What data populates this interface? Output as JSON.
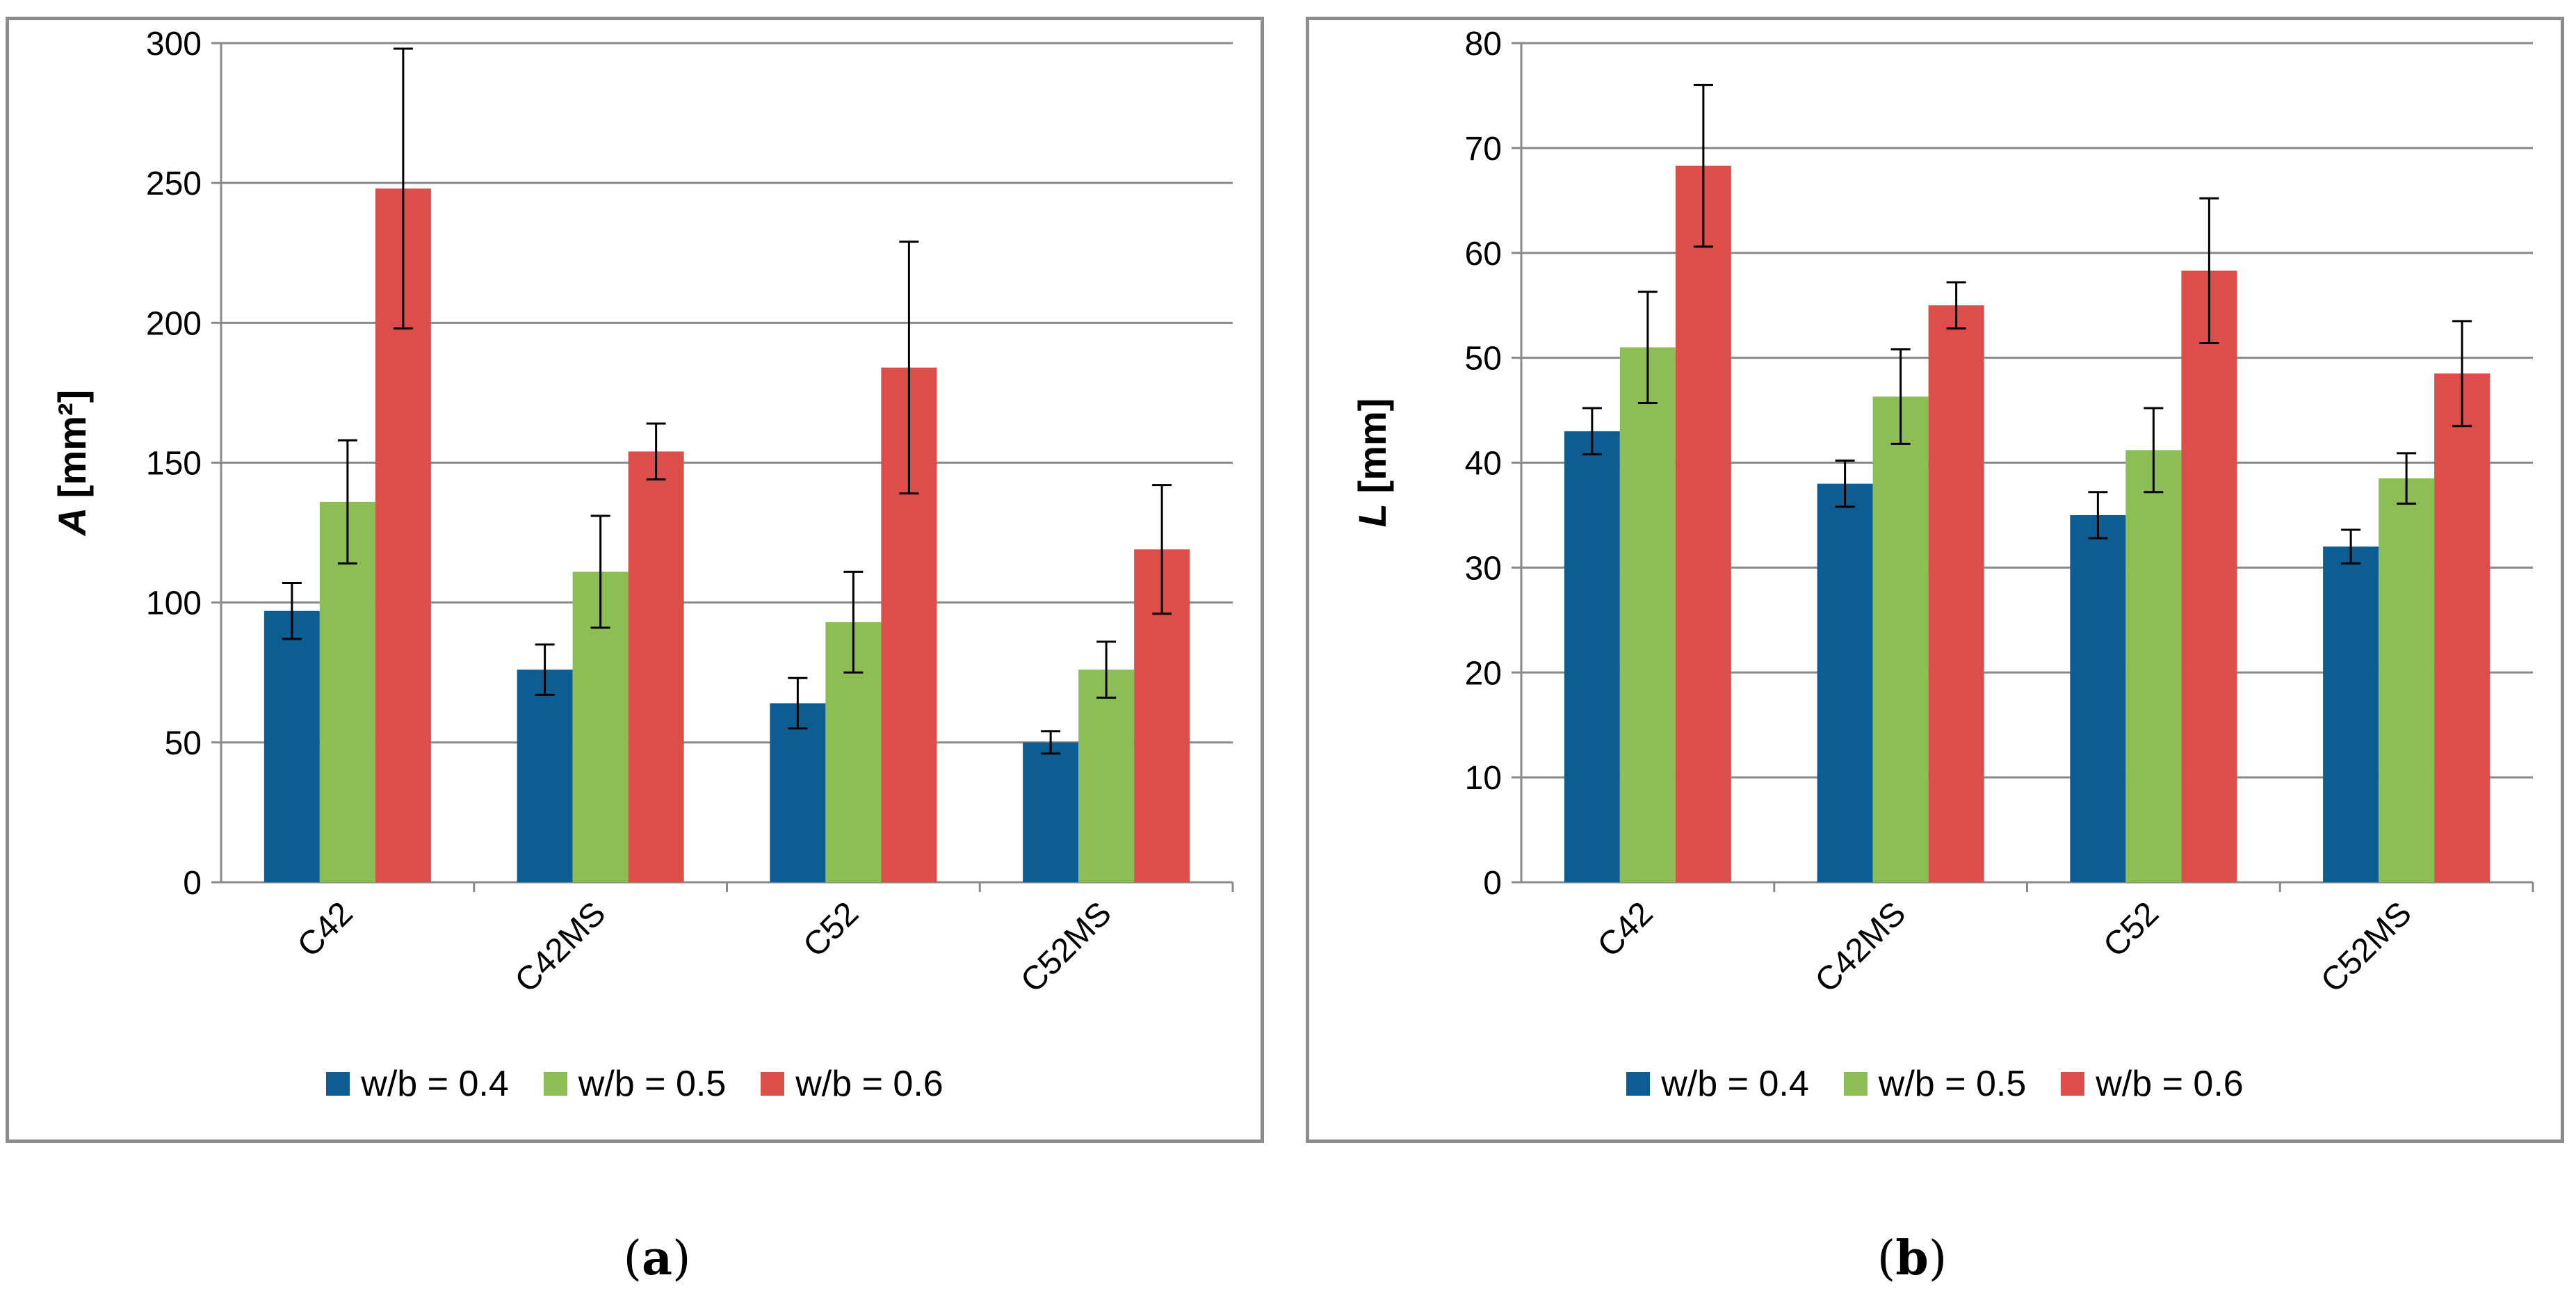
{
  "chart_data": [
    {
      "type": "bar",
      "panel_label": "a",
      "ylabel_var": "A",
      "ylabel_unit": "[mm²]",
      "categories": [
        "C42",
        "C42MS",
        "C52",
        "C52MS"
      ],
      "ylim": [
        0,
        300
      ],
      "yticks": [
        0,
        50,
        100,
        150,
        200,
        250,
        300
      ],
      "grid": true,
      "legend_position": "bottom",
      "series": [
        {
          "name": "w/b = 0.4",
          "color": "#0d5d93",
          "values": [
            97,
            76,
            64,
            50
          ],
          "errors": [
            10,
            9,
            9,
            4
          ]
        },
        {
          "name": "w/b = 0.5",
          "color": "#8dbe55",
          "values": [
            136,
            111,
            93,
            76
          ],
          "errors": [
            22,
            20,
            18,
            10
          ]
        },
        {
          "name": "w/b = 0.6",
          "color": "#dd4e4b",
          "values": [
            248,
            154,
            184,
            119
          ],
          "errors": [
            50,
            10,
            45,
            23
          ]
        }
      ]
    },
    {
      "type": "bar",
      "panel_label": "b",
      "ylabel_var": "L",
      "ylabel_unit": "[mm]",
      "categories": [
        "C42",
        "C42MS",
        "C52",
        "C52MS"
      ],
      "ylim": [
        0,
        80
      ],
      "yticks": [
        0,
        10,
        20,
        30,
        40,
        50,
        60,
        70,
        80
      ],
      "grid": true,
      "legend_position": "bottom",
      "series": [
        {
          "name": "w/b = 0.4",
          "color": "#0d5d93",
          "values": [
            43,
            38,
            35,
            32
          ],
          "errors": [
            2.2,
            2.2,
            2.2,
            1.6
          ]
        },
        {
          "name": "w/b = 0.5",
          "color": "#8dbe55",
          "values": [
            51,
            46.3,
            41.2,
            38.5
          ],
          "errors": [
            5.3,
            4.5,
            4.0,
            2.4
          ]
        },
        {
          "name": "w/b = 0.6",
          "color": "#dd4e4b",
          "values": [
            68.3,
            55,
            58.3,
            48.5
          ],
          "errors": [
            7.7,
            2.2,
            6.9,
            5.0
          ]
        }
      ]
    }
  ]
}
